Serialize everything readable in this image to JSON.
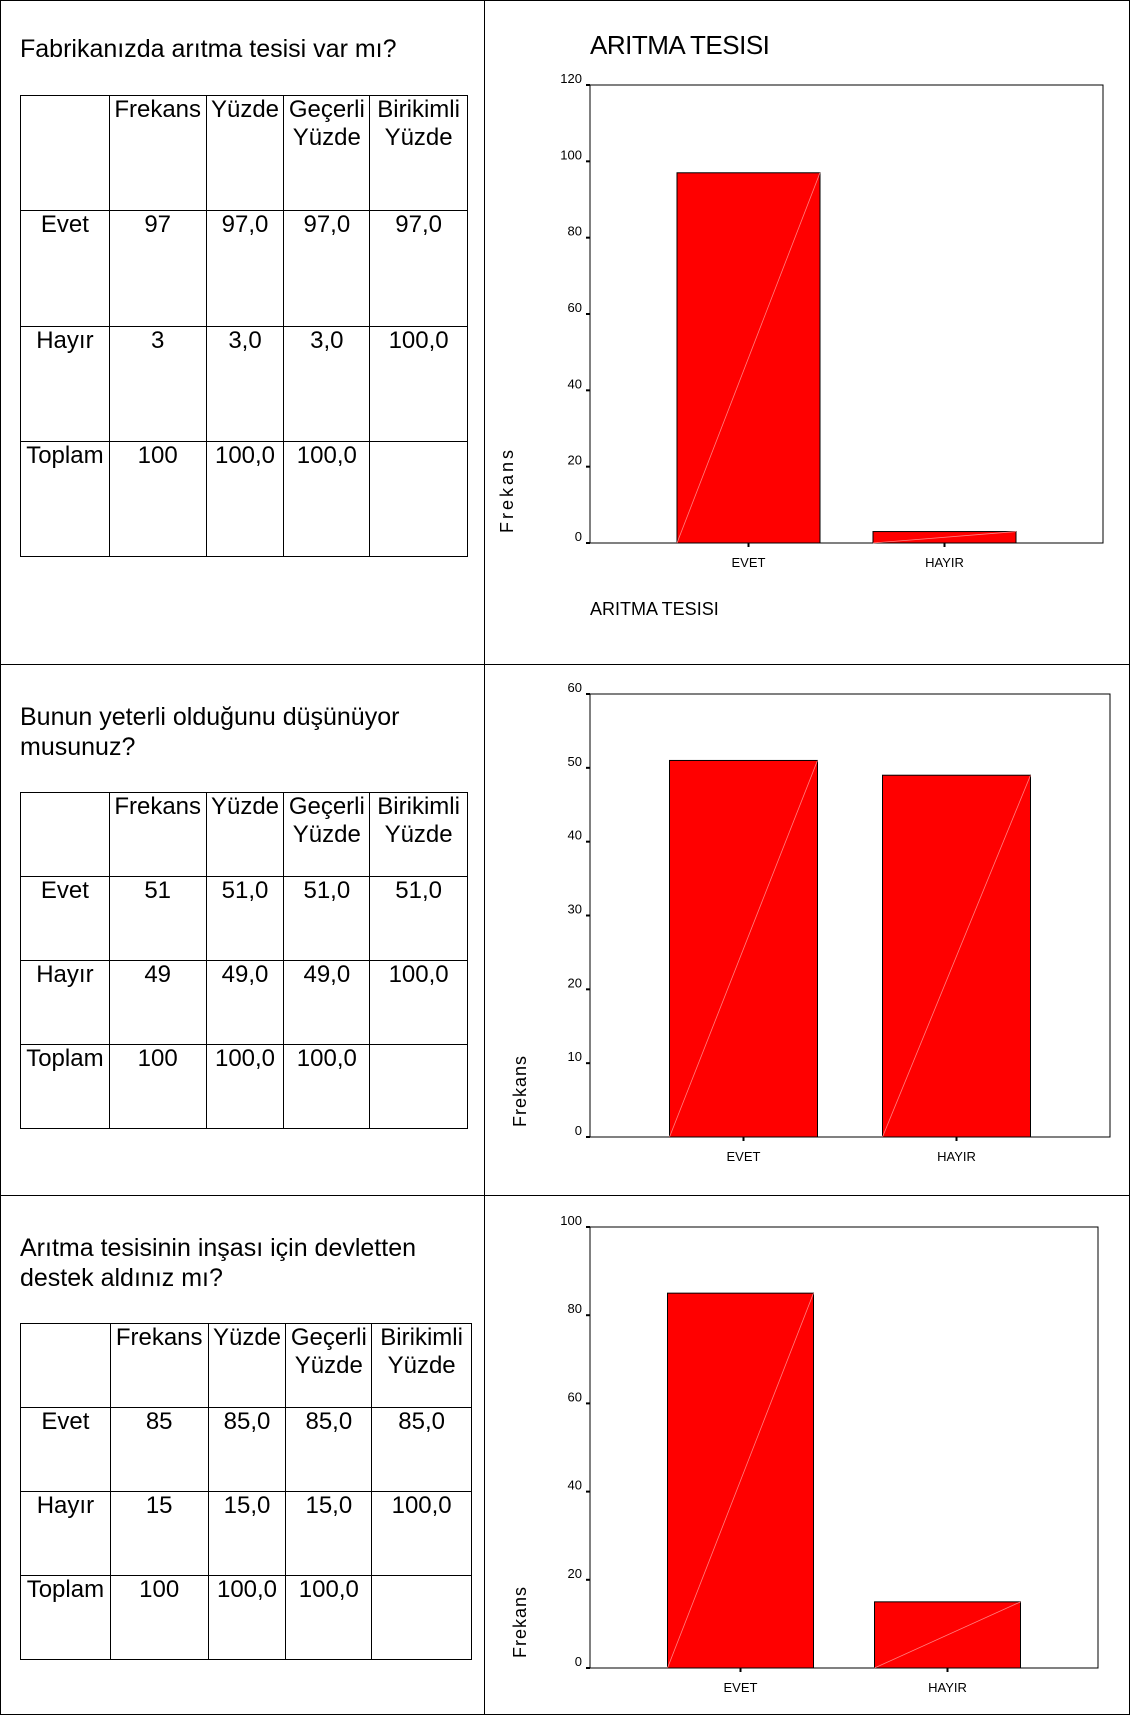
{
  "sections": [
    {
      "question": "Fabrikanızda arıtma tesisi var mı?",
      "table": {
        "headers": [
          "",
          "Frekans",
          "Yüzde",
          "Geçerli Yüzde",
          "Birikimli Yüzde"
        ],
        "rows": [
          [
            "Evet",
            "97",
            "97,0",
            "97,0",
            "97,0"
          ],
          [
            "Hayır",
            "3",
            "3,0",
            "3,0",
            "100,0"
          ],
          [
            "Toplam",
            "100",
            "100,0",
            "100,0",
            ""
          ]
        ]
      }
    },
    {
      "question": "Bunun yeterli olduğunu düşünüyor musunuz?",
      "table": {
        "headers": [
          "",
          "Frekans",
          "Yüzde",
          "Geçerli Yüzde",
          "Birikimli Yüzde"
        ],
        "rows": [
          [
            "Evet",
            "51",
            "51,0",
            "51,0",
            "51,0"
          ],
          [
            "Hayır",
            "49",
            "49,0",
            "49,0",
            "100,0"
          ],
          [
            "Toplam",
            "100",
            "100,0",
            "100,0",
            ""
          ]
        ]
      }
    },
    {
      "question": "Arıtma tesisinin inşası için devletten destek aldınız mı?",
      "table": {
        "headers": [
          "",
          "Frekans",
          "Yüzde",
          "Geçerli Yüzde",
          "Birikimli Yüzde"
        ],
        "rows": [
          [
            "Evet",
            "85",
            "85,0",
            "85,0",
            "85,0"
          ],
          [
            "Hayır",
            "15",
            "15,0",
            "15,0",
            "100,0"
          ],
          [
            "Toplam",
            "100",
            "100,0",
            "100,0",
            ""
          ]
        ]
      }
    }
  ],
  "colors": {
    "bar": "#ff0000",
    "bar_stroke": "#000000",
    "axis": "#000000"
  },
  "chart_data": [
    {
      "type": "bar",
      "title": "ARITMA TESISI",
      "categories": [
        "EVET",
        "HAYIR"
      ],
      "values": [
        97,
        3
      ],
      "xlabel": "ARITMA TESISI",
      "ylabel": "Frekans",
      "yticks": [
        0,
        20,
        40,
        60,
        80,
        100,
        120
      ],
      "ylim": [
        0,
        120
      ],
      "grid": false
    },
    {
      "type": "bar",
      "title": "",
      "categories": [
        "EVET",
        "HAYIR"
      ],
      "values": [
        51,
        49
      ],
      "xlabel": "",
      "ylabel": "Frekans",
      "yticks": [
        0,
        10,
        20,
        30,
        40,
        50,
        60
      ],
      "ylim": [
        0,
        60
      ],
      "grid": false
    },
    {
      "type": "bar",
      "title": "",
      "categories": [
        "EVET",
        "HAYIR"
      ],
      "values": [
        85,
        15
      ],
      "xlabel": "",
      "ylabel": "Frekans",
      "yticks": [
        0,
        20,
        40,
        60,
        80,
        100
      ],
      "ylim": [
        0,
        100
      ],
      "grid": false
    }
  ]
}
